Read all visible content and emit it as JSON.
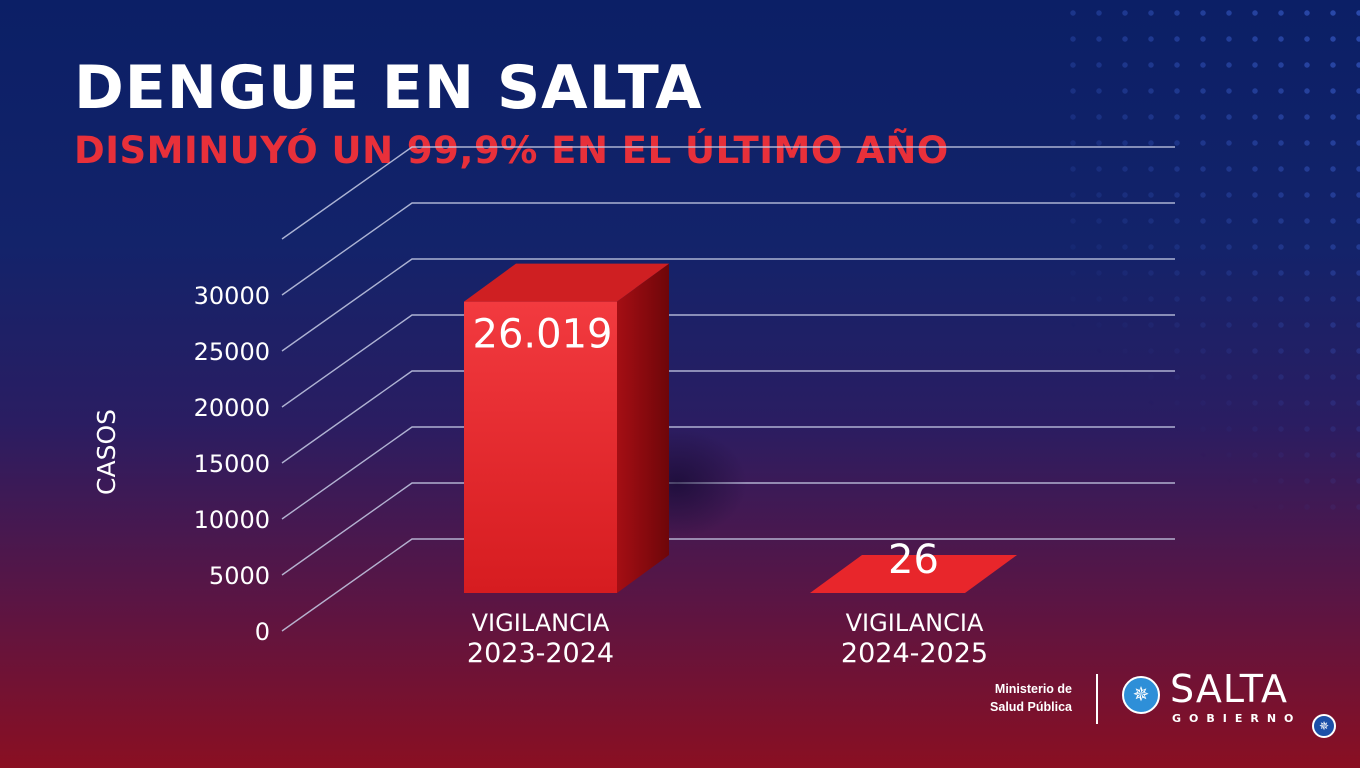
{
  "header": {
    "title": "DENGUE EN SALTA",
    "subtitle": "DISMINUYÓ UN 99,9% EN EL ÚLTIMO AÑO"
  },
  "chart_data": {
    "type": "bar",
    "style": "3d",
    "title": "DENGUE EN SALTA",
    "subtitle": "DISMINUYÓ UN 99,9% EN EL ÚLTIMO AÑO",
    "ylabel": "CASOS",
    "xlabel": "",
    "ylim": [
      0,
      35000
    ],
    "yticks": [
      0,
      5000,
      10000,
      15000,
      20000,
      25000,
      30000
    ],
    "grid": true,
    "categories": [
      {
        "line1": "VIGILANCIA",
        "line2": "2023-2024"
      },
      {
        "line1": "VIGILANCIA",
        "line2": "2024-2025"
      }
    ],
    "values": [
      26019,
      26
    ],
    "data_labels": [
      "26.019",
      "26"
    ],
    "colors": {
      "bar_front": "#e8262b",
      "bar_side": "#8e0a0f",
      "bar_top": "#cf1f22",
      "grid": "#c7cde6"
    }
  },
  "footer": {
    "ministry_line1": "Ministerio de",
    "ministry_line2": "Salud Pública",
    "logo_word": "SALTA",
    "logo_sub": "GOBIERNO",
    "logo_icon": "sun-star-icon"
  }
}
